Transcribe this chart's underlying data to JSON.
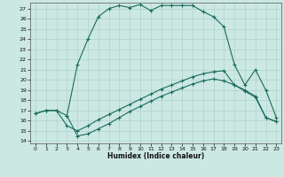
{
  "xlabel": "Humidex (Indice chaleur)",
  "bg_color": "#cce8e3",
  "line_color": "#1a6b5a",
  "ylim": [
    13.8,
    27.6
  ],
  "xlim": [
    -0.5,
    23.5
  ],
  "yticks": [
    14,
    15,
    16,
    17,
    18,
    19,
    20,
    21,
    22,
    23,
    24,
    25,
    26,
    27
  ],
  "xticks": [
    0,
    1,
    2,
    3,
    4,
    5,
    6,
    7,
    8,
    9,
    10,
    11,
    12,
    13,
    14,
    15,
    16,
    17,
    18,
    19,
    20,
    21,
    22,
    23
  ],
  "curve_top_x": [
    3,
    4,
    5,
    6,
    7,
    8,
    9,
    10,
    11,
    12,
    13,
    14,
    15,
    16,
    17,
    18,
    19,
    20,
    21,
    22,
    23
  ],
  "curve_top_y": [
    16.5,
    21.5,
    24.0,
    26.2,
    27.0,
    27.3,
    27.1,
    27.4,
    26.8,
    27.3,
    27.3,
    27.3,
    27.3,
    26.7,
    26.2,
    25.2,
    21.5,
    19.5,
    21.0,
    19.0,
    16.3
  ],
  "curve_mid_x": [
    0,
    1,
    2,
    3,
    4,
    5,
    6,
    7,
    8,
    9,
    10,
    11,
    12,
    13,
    14,
    15,
    16,
    17,
    18,
    19,
    20,
    21,
    22,
    23
  ],
  "curve_mid_y": [
    16.7,
    17.0,
    17.0,
    15.5,
    15.0,
    15.5,
    16.1,
    16.6,
    17.1,
    17.6,
    18.1,
    18.6,
    19.1,
    19.5,
    19.9,
    20.3,
    20.6,
    20.8,
    20.9,
    19.5,
    19.0,
    18.4,
    16.3,
    15.9
  ],
  "curve_bot_x": [
    0,
    1,
    2,
    3,
    4,
    5,
    6,
    7,
    8,
    9,
    10,
    11,
    12,
    13,
    14,
    15,
    16,
    17,
    18,
    19,
    20,
    21,
    22,
    23
  ],
  "curve_bot_y": [
    16.7,
    17.0,
    17.0,
    16.5,
    14.5,
    14.7,
    15.2,
    15.7,
    16.3,
    16.9,
    17.4,
    17.9,
    18.4,
    18.8,
    19.2,
    19.6,
    19.9,
    20.1,
    19.9,
    19.5,
    18.9,
    18.3,
    16.3,
    15.9
  ]
}
